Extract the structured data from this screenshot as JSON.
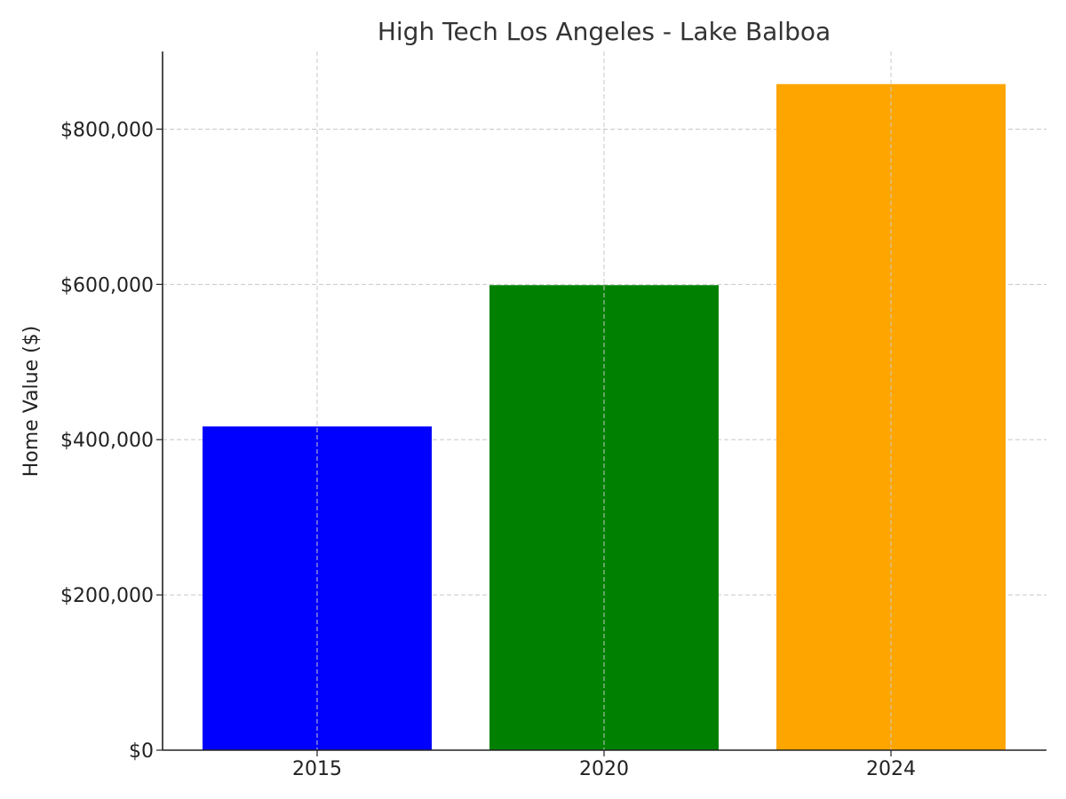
{
  "chart_data": {
    "type": "bar",
    "title": "High Tech Los Angeles - Lake Balboa",
    "xlabel": "",
    "ylabel": "Home Value ($)",
    "categories": [
      "2015",
      "2020",
      "2024"
    ],
    "values": [
      417000,
      599000,
      858000
    ],
    "bar_colors": [
      "#0000ff",
      "#008000",
      "#ffa500"
    ],
    "ylim": [
      0,
      900000
    ],
    "yticks": [
      0,
      200000,
      400000,
      600000,
      800000
    ],
    "ytick_labels": [
      "$0",
      "$200,000",
      "$400,000",
      "$600,000",
      "$800,000"
    ],
    "grid": true,
    "legend": "none"
  }
}
